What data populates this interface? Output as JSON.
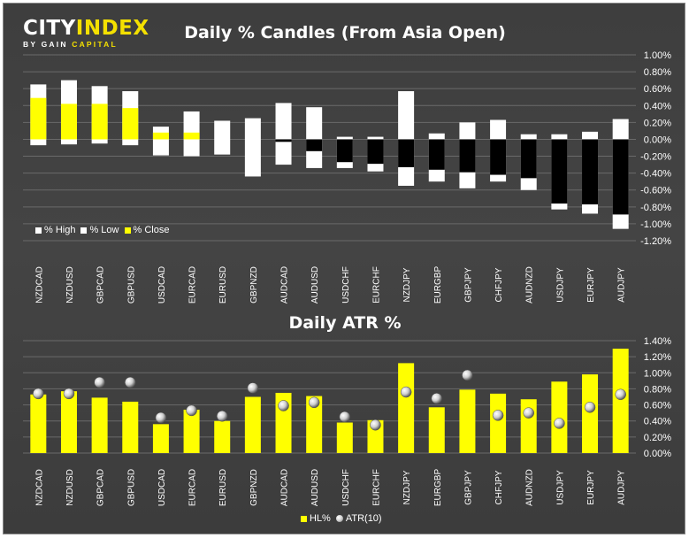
{
  "logo": {
    "city": "CITY",
    "index": "INDEX",
    "sub_by": "BY ",
    "sub_gain": "GAIN",
    "sub_capital": " CAPITAL"
  },
  "colors": {
    "high_low": "#ffffff",
    "close": "#ffff00",
    "neg_body": "#000000",
    "hl_bar": "#ffff00",
    "atr_marker": "#d8d8d8"
  },
  "chart_data": [
    {
      "type": "bar",
      "title": "Daily % Candles (From Asia Open)",
      "categories": [
        "NZDCAD",
        "NZDUSD",
        "GBPCAD",
        "GBPUSD",
        "USDCAD",
        "EURCAD",
        "EURUSD",
        "GBPNZD",
        "AUDCAD",
        "AUDUSD",
        "USDCHF",
        "EURCHF",
        "NZDJPY",
        "EURGBP",
        "GBPJPY",
        "CHFJPY",
        "AUDNZD",
        "USDJPY",
        "EURJPY",
        "AUDJPY"
      ],
      "series": [
        {
          "name": "% High",
          "values": [
            0.65,
            0.7,
            0.63,
            0.57,
            0.15,
            0.33,
            0.22,
            0.25,
            0.43,
            0.38,
            0.03,
            0.03,
            0.57,
            0.07,
            0.2,
            0.23,
            0.06,
            0.06,
            0.09,
            0.24
          ]
        },
        {
          "name": "% Low",
          "values": [
            -0.07,
            -0.06,
            -0.05,
            -0.07,
            -0.19,
            -0.2,
            -0.18,
            -0.44,
            -0.3,
            -0.34,
            -0.34,
            -0.38,
            -0.55,
            -0.5,
            -0.58,
            -0.5,
            -0.6,
            -0.83,
            -0.88,
            -1.06
          ]
        },
        {
          "name": "% Close",
          "values": [
            0.49,
            0.42,
            0.42,
            0.37,
            0.08,
            0.08,
            0.0,
            0.0,
            -0.03,
            -0.14,
            -0.27,
            -0.29,
            -0.33,
            -0.36,
            -0.39,
            -0.42,
            -0.46,
            -0.76,
            -0.77,
            -0.89
          ]
        }
      ],
      "yticks": [
        "1.00%",
        "0.80%",
        "0.60%",
        "0.40%",
        "0.20%",
        "0.00%",
        "-0.20%",
        "-0.40%",
        "-0.60%",
        "-0.80%",
        "-1.00%",
        "-1.20%"
      ],
      "ylim": [
        -1.2,
        1.0
      ],
      "legend": "bottom-left",
      "grid": true
    },
    {
      "type": "bar",
      "title": "Daily ATR %",
      "categories": [
        "NZDCAD",
        "NZDUSD",
        "GBPCAD",
        "GBPUSD",
        "USDCAD",
        "EURCAD",
        "EURUSD",
        "GBPNZD",
        "AUDCAD",
        "AUDUSD",
        "USDCHF",
        "EURCHF",
        "NZDJPY",
        "EURGBP",
        "GBPJPY",
        "CHFJPY",
        "AUDNZD",
        "USDJPY",
        "EURJPY",
        "AUDJPY"
      ],
      "series": [
        {
          "name": "HL%",
          "values": [
            0.73,
            0.77,
            0.69,
            0.64,
            0.36,
            0.54,
            0.4,
            0.7,
            0.75,
            0.71,
            0.38,
            0.41,
            1.12,
            0.57,
            0.79,
            0.74,
            0.67,
            0.89,
            0.98,
            1.3
          ]
        },
        {
          "name": "ATR(10)",
          "values": [
            0.74,
            0.74,
            0.88,
            0.88,
            0.44,
            0.53,
            0.46,
            0.81,
            0.59,
            0.63,
            0.45,
            0.35,
            0.76,
            0.68,
            0.97,
            0.47,
            0.5,
            0.37,
            0.57,
            0.73
          ]
        }
      ],
      "yticks": [
        "1.40%",
        "1.20%",
        "1.00%",
        "0.80%",
        "0.60%",
        "0.40%",
        "0.20%",
        "0.00%"
      ],
      "ylim": [
        0,
        1.4
      ],
      "legend": "bottom-center",
      "grid": true
    }
  ]
}
